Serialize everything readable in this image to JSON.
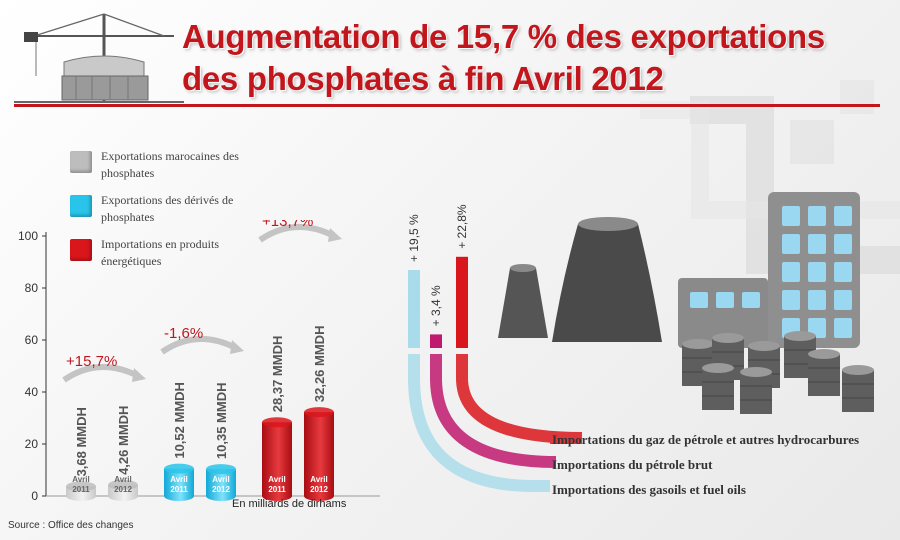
{
  "title": {
    "line1": "Augmentation de 15,7 % des exportations",
    "line2": "des phosphates à fin Avril 2012"
  },
  "legend": [
    {
      "label": "Exportations marocaines des phosphates",
      "color": "#bdbdbd"
    },
    {
      "label": "Exportations des dérivés de phosphates",
      "color": "#29c4ea"
    },
    {
      "label": "Importations en produits énergétiques",
      "color": "#d9161c"
    }
  ],
  "source": "Source : Office des changes",
  "unit": "En milliards de dirhams",
  "icons": [
    "crane-icon",
    "factory-icon",
    "oil-barrel-icon"
  ],
  "chart_data": [
    {
      "type": "bar",
      "ylim": [
        0,
        100
      ],
      "yticks": [
        "0",
        "20",
        "40",
        "60",
        "80",
        "100"
      ],
      "groups": [
        {
          "name": "Exportations marocaines des phosphates",
          "color": "#bdbdbd",
          "change": "+15,7%",
          "bars": [
            {
              "category": "Avril 2011",
              "value": 3.68,
              "label": "3,68 MMDH"
            },
            {
              "category": "Avril 2012",
              "value": 4.26,
              "label": "4,26 MMDH"
            }
          ]
        },
        {
          "name": "Exportations des dérivés de phosphates",
          "color": "#29c4ea",
          "change": "-1,6%",
          "bars": [
            {
              "category": "Avril 2011",
              "value": 10.52,
              "label": "10,52 MMDH"
            },
            {
              "category": "Avril 2012",
              "value": 10.35,
              "label": "10,35 MMDH"
            }
          ]
        },
        {
          "name": "Importations en produits énergétiques",
          "color": "#d9161c",
          "change": "+13,7%",
          "bars": [
            {
              "category": "Avril 2011",
              "value": 28.37,
              "label": "28,37 MMDH"
            },
            {
              "category": "Avril 2012",
              "value": 32.26,
              "label": "32,26 MMDH"
            }
          ]
        }
      ]
    },
    {
      "type": "bar",
      "series": [
        {
          "name": "Importations des gasoils et fuel oils",
          "change": "+ 19,5 %",
          "value": 19.5,
          "color": "#a9dcea"
        },
        {
          "name": "Importations du pétrole brut",
          "change": "+ 3,4 %",
          "value": 3.4,
          "color": "#c01a6e"
        },
        {
          "name": "Importations du gaz de pétrole et autres hydrocarbures",
          "change": "+ 22,8%",
          "value": 22.8,
          "color": "#d9161c"
        }
      ]
    }
  ]
}
